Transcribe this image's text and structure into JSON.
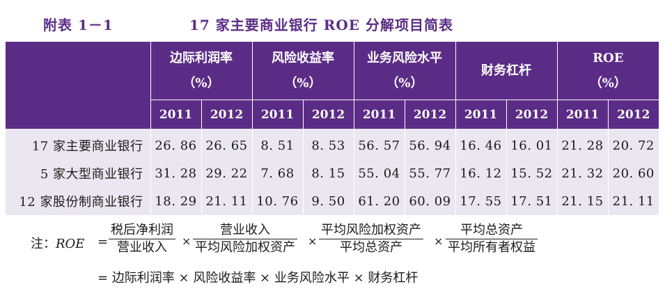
{
  "caption": {
    "id": "附表 1－1",
    "title": "17 家主要商业银行 ROE 分解项目简表"
  },
  "table": {
    "groups": [
      {
        "label": "边际利润率",
        "unit": "（%）"
      },
      {
        "label": "风险收益率",
        "unit": "（%）"
      },
      {
        "label": "业务风险水平",
        "unit": "（%）"
      },
      {
        "label": "财务杠杆",
        "unit": ""
      },
      {
        "label": "ROE",
        "unit": "（%）"
      }
    ],
    "years": [
      "2011",
      "2012",
      "2011",
      "2012",
      "2011",
      "2012",
      "2011",
      "2012",
      "2011",
      "2012"
    ],
    "rows": [
      {
        "name": "17 家主要商业银行",
        "values": [
          "26. 86",
          "26. 65",
          "8. 51",
          "8. 53",
          "56. 57",
          "56. 94",
          "16. 46",
          "16. 01",
          "21. 28",
          "20. 72"
        ]
      },
      {
        "name": "5 家大型商业银行",
        "values": [
          "31. 28",
          "29. 22",
          "7. 68",
          "8. 15",
          "55. 04",
          "55. 77",
          "16. 12",
          "15. 52",
          "21. 32",
          "20. 60"
        ]
      },
      {
        "name": "12 家股份制商业银行",
        "values": [
          "18. 29",
          "21. 11",
          "10. 76",
          "9. 50",
          "61. 20",
          "60. 09",
          "17. 55",
          "17. 51",
          "21. 15",
          "21. 11"
        ]
      }
    ]
  },
  "note": {
    "label": "注：",
    "lhs": "ROE",
    "eq": "=",
    "times": "×",
    "fractions": [
      {
        "num": "税后净利润",
        "den": "营业收入"
      },
      {
        "num": "营业收入",
        "den": "平均风险加权资产"
      },
      {
        "num": "平均风险加权资产",
        "den": "平均总资产"
      },
      {
        "num": "平均总资产",
        "den": "平均所有者权益"
      }
    ],
    "result": "= 边际利润率 × 风险收益率 × 业务风险水平 × 财务杠杆"
  }
}
